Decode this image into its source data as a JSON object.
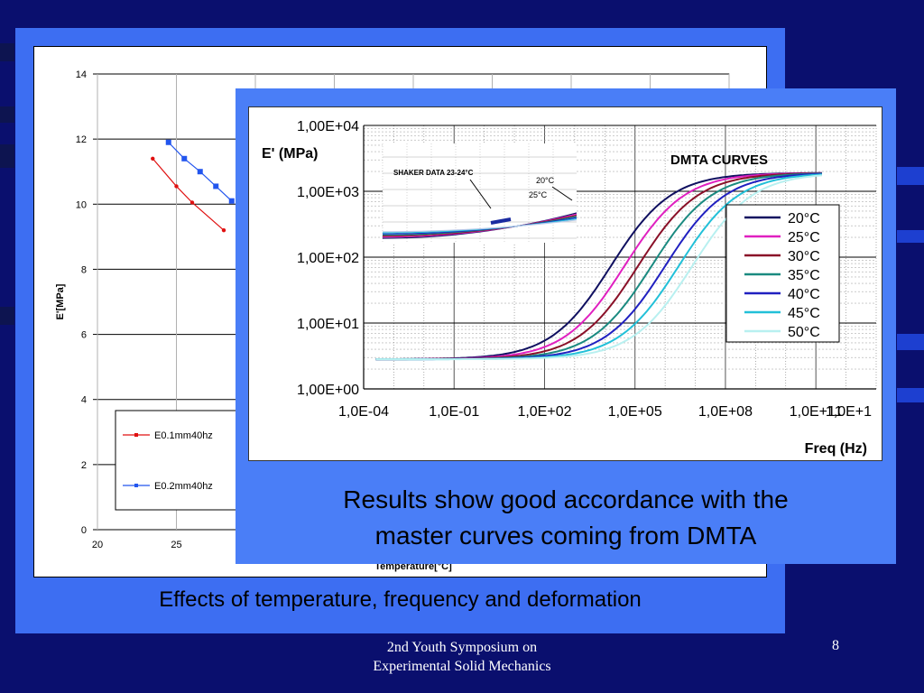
{
  "slide": {
    "colors": {
      "background": "#0a0f6e",
      "panel_left": "#3d6ef2",
      "panel_right": "#4a7ef7"
    },
    "caption_left": "Effects of  temperature, frequency and deformation",
    "caption_right_line1": "Results show good accordance with the",
    "caption_right_line2": "master curves coming from DMTA",
    "footer_line1": "2nd Youth Symposium on",
    "footer_line2": "Experimental Solid Mechanics",
    "page_number": "8"
  },
  "chart_data": [
    {
      "type": "scatter",
      "ylabel": "E'[MPa]",
      "xlabel": "Temperature[°C]",
      "xlim": [
        20,
        60
      ],
      "ylim": [
        0,
        14
      ],
      "x_ticks": [
        "20",
        "25"
      ],
      "y_ticks": [
        "0",
        "2",
        "4",
        "6",
        "8",
        "10",
        "12",
        "14"
      ],
      "grid": true,
      "legend": "bottom-left",
      "series": [
        {
          "name": "E0.1mm40hz",
          "color": "#e01010",
          "x": [
            23.5,
            25,
            26,
            28
          ],
          "y": [
            11.4,
            10.55,
            10.05,
            9.2
          ]
        },
        {
          "name": "E0.2mm40hz",
          "color": "#2255ee",
          "x": [
            24.5,
            25.5,
            26.5,
            27.5,
            28.5
          ],
          "y": [
            11.9,
            11.4,
            11.0,
            10.55,
            10.1
          ]
        }
      ]
    },
    {
      "type": "line",
      "ylabel": "E' (MPa)",
      "xlabel": "Freq (Hz)",
      "y_scale": "log",
      "x_scale": "log",
      "ylim": [
        1,
        10000
      ],
      "xlim": [
        0.0001,
        10000000000000
      ],
      "y_ticks": [
        "1,00E+00",
        "1,00E+01",
        "1,00E+02",
        "1,00E+03",
        "1,00E+04"
      ],
      "x_ticks": [
        "1,0E-04",
        "1,0E-01",
        "1,0E+02",
        "1,0E+05",
        "1,0E+08",
        "1,0E+11",
        "1,0E+1"
      ],
      "grid": true,
      "legend": "right",
      "annotations": [
        "DMTA CURVES",
        "SHAKER DATA 23-24°C",
        "20°C",
        "25°C"
      ],
      "series": [
        {
          "name": "20°C",
          "color": "#101060",
          "shift_decades": 0.0
        },
        {
          "name": "25°C",
          "color": "#e020c0",
          "shift_decades": 0.45
        },
        {
          "name": "30°C",
          "color": "#8a1028",
          "shift_decades": 0.9
        },
        {
          "name": "35°C",
          "color": "#1a8a80",
          "shift_decades": 1.35
        },
        {
          "name": "40°C",
          "color": "#2020c0",
          "shift_decades": 1.8
        },
        {
          "name": "45°C",
          "color": "#22c0d8",
          "shift_decades": 2.25
        },
        {
          "name": "50°C",
          "color": "#b8f0f0",
          "shift_decades": 2.7
        }
      ]
    }
  ]
}
